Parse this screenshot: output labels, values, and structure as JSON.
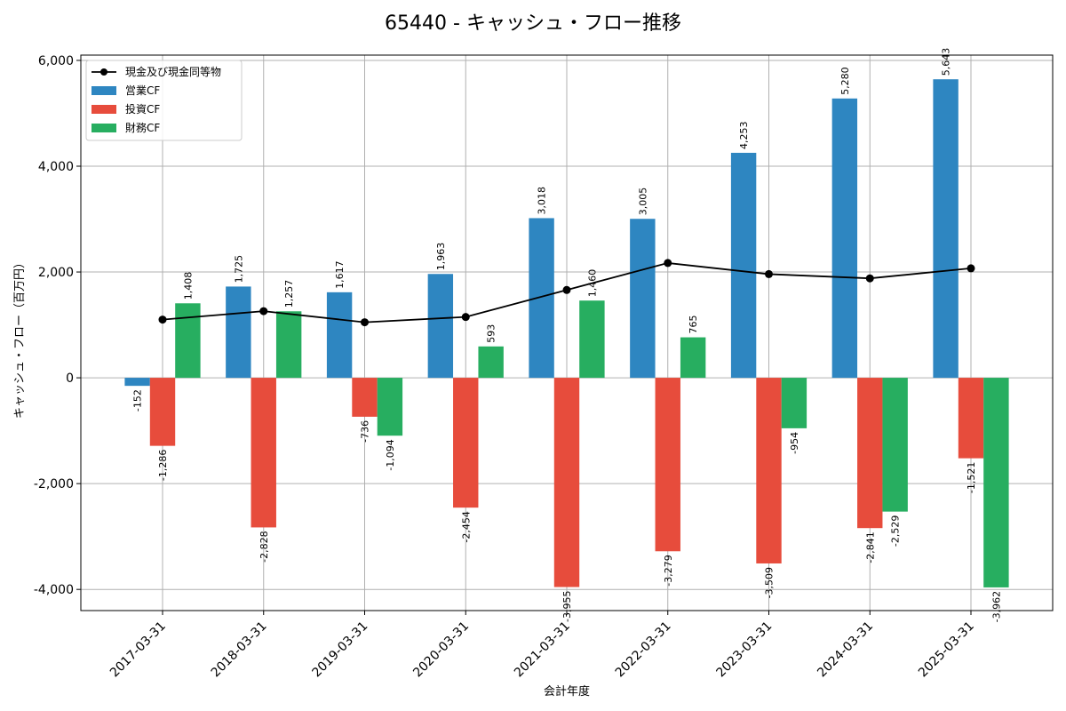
{
  "chart_data": {
    "type": "bar",
    "title": "65440 - キャッシュ・フロー推移",
    "xlabel": "会計年度",
    "ylabel": "キャッシュ・フロー（百万円）",
    "ylim": [
      -4400,
      6100
    ],
    "yticks": [
      -4000,
      -2000,
      0,
      2000,
      4000,
      6000
    ],
    "ytick_labels": [
      "-4,000",
      "-2,000",
      "0",
      "2,000",
      "4,000",
      "6,000"
    ],
    "grid": true,
    "legend_position": "top-left",
    "categories": [
      "2017-03-31",
      "2018-03-31",
      "2019-03-31",
      "2020-03-31",
      "2021-03-31",
      "2022-03-31",
      "2023-03-31",
      "2024-03-31",
      "2025-03-31"
    ],
    "series": [
      {
        "name": "営業CF",
        "kind": "bar",
        "color": "#2e86c1",
        "values": [
          -152,
          1725,
          1617,
          1963,
          3018,
          3005,
          4253,
          5280,
          5643
        ],
        "labels": [
          "-152",
          "1,725",
          "1,617",
          "1,963",
          "3,018",
          "3,005",
          "4,253",
          "5,280",
          "5,643"
        ]
      },
      {
        "name": "投資CF",
        "kind": "bar",
        "color": "#e74c3c",
        "values": [
          -1286,
          -2828,
          -736,
          -2454,
          -3955,
          -3279,
          -3509,
          -2841,
          -1521
        ],
        "labels": [
          "-1,286",
          "-2,828",
          "-736",
          "-2,454",
          "-3,955",
          "-3,279",
          "-3,509",
          "-2,841",
          "-1,521"
        ]
      },
      {
        "name": "財務CF",
        "kind": "bar",
        "color": "#27ae60",
        "values": [
          1408,
          1257,
          -1094,
          593,
          1460,
          765,
          -954,
          -2529,
          -3962
        ],
        "labels": [
          "1,408",
          "1,257",
          "-1,094",
          "593",
          "1,460",
          "765",
          "-954",
          "-2,529",
          "-3,962"
        ]
      }
    ],
    "line": {
      "name": "現金及び現金同等物",
      "color": "#000000",
      "values": [
        1100,
        1260,
        1050,
        1150,
        1660,
        2170,
        1960,
        1880,
        2070
      ]
    }
  }
}
